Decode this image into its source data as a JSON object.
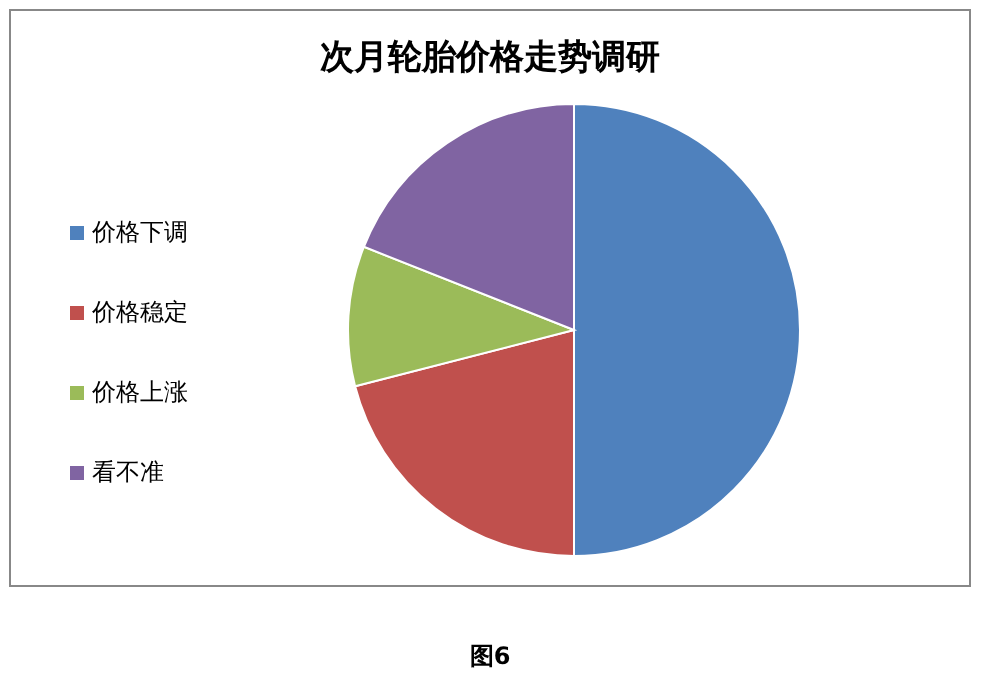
{
  "chart_data": {
    "type": "pie",
    "title": "次月轮胎价格走势调研",
    "categories": [
      "价格下调",
      "价格稳定",
      "价格上涨",
      "看不准"
    ],
    "values": [
      50,
      21,
      10,
      19
    ],
    "colors": [
      "#4f81bd",
      "#c0504d",
      "#9bbb59",
      "#8064a2"
    ],
    "legend": "left",
    "annotations": [
      "图6"
    ]
  }
}
